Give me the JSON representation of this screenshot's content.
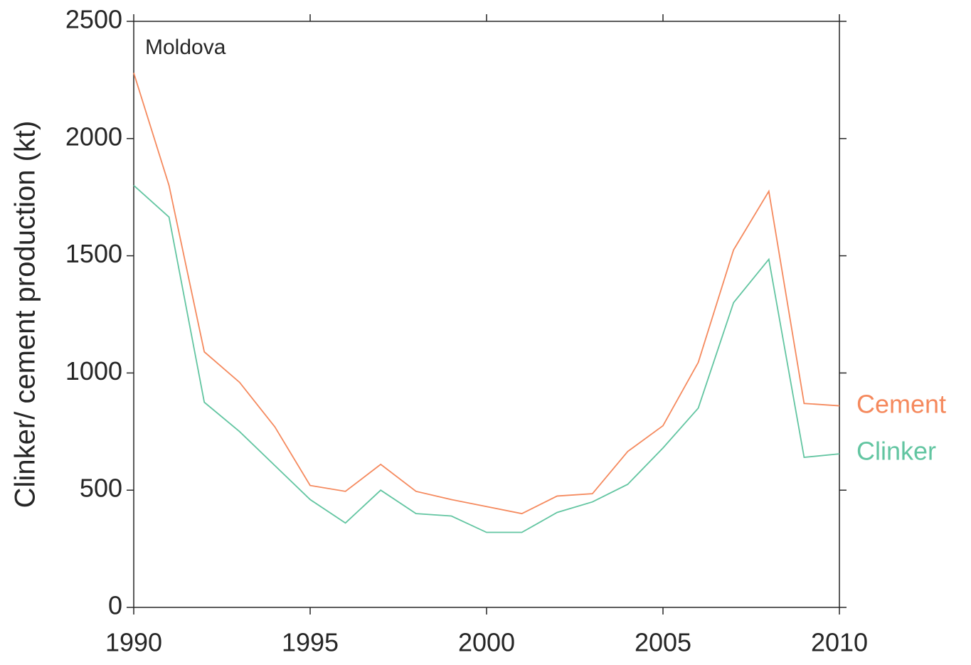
{
  "chart_data": {
    "type": "line",
    "title": "Moldova",
    "y_label": "Clinker/ cement production (kt)",
    "x": [
      1990,
      1991,
      1992,
      1993,
      1994,
      1995,
      1996,
      1997,
      1998,
      1999,
      2000,
      2001,
      2002,
      2003,
      2004,
      2005,
      2006,
      2007,
      2008,
      2009,
      2010
    ],
    "series": [
      {
        "name": "Cement",
        "color": "#f5895d",
        "values": [
          2280,
          1800,
          1090,
          960,
          770,
          520,
          495,
          610,
          495,
          460,
          430,
          400,
          475,
          485,
          665,
          775,
          1045,
          1525,
          1775,
          870,
          860
        ]
      },
      {
        "name": "Clinker",
        "color": "#62c5a1",
        "values": [
          1800,
          1665,
          875,
          750,
          605,
          460,
          360,
          500,
          400,
          390,
          320,
          320,
          405,
          450,
          525,
          680,
          850,
          1300,
          1485,
          640,
          655
        ]
      }
    ],
    "xlim": [
      1990,
      2010
    ],
    "xticks": [
      1990,
      1995,
      2000,
      2005,
      2010
    ],
    "ylim": [
      0,
      2500
    ],
    "yticks": [
      0,
      500,
      1000,
      1500,
      2000,
      2500
    ]
  }
}
